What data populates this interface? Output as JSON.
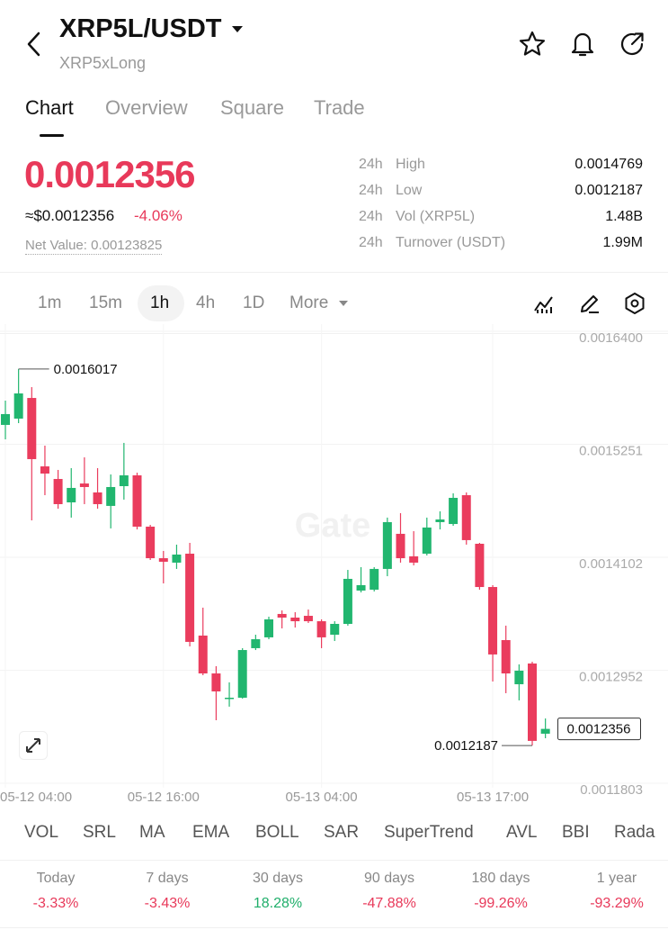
{
  "header": {
    "title": "XRP5L/USDT",
    "subtitle": "XRP5xLong"
  },
  "tabs": [
    "Chart",
    "Overview",
    "Square",
    "Trade"
  ],
  "price": {
    "last": "0.0012356",
    "usd": "≈$0.0012356",
    "change": "-4.06%",
    "net_value": "Net Value: 0.00123825"
  },
  "stats": [
    [
      "24h",
      "High",
      "0.0014769"
    ],
    [
      "24h",
      "Low",
      "0.0012187"
    ],
    [
      "24h",
      "Vol (XRP5L)",
      "1.48B"
    ],
    [
      "24h",
      "Turnover (USDT)",
      "1.99M"
    ]
  ],
  "intervals": [
    "1m",
    "15m",
    "1h",
    "4h",
    "1D",
    "More"
  ],
  "chart_data": {
    "type": "candlestick",
    "watermark": "Gate",
    "categories": [
      "05-12 04:00",
      null,
      null,
      null,
      null,
      null,
      null,
      null,
      null,
      null,
      null,
      null,
      "05-12 16:00",
      null,
      null,
      null,
      null,
      null,
      null,
      null,
      null,
      null,
      null,
      null,
      "05-13 04:00",
      null,
      null,
      null,
      null,
      null,
      null,
      null,
      null,
      null,
      null,
      null,
      null,
      "05-13 17:00",
      null,
      null,
      null,
      null
    ],
    "open": [
      0.0015448,
      0.0015512,
      0.0015722,
      0.0015026,
      0.0014898,
      0.001466,
      0.0014852,
      0.0014761,
      0.0014624,
      0.0014825,
      0.0014935,
      0.0014413,
      0.0014092,
      0.0014047,
      0.0014138,
      0.0013305,
      0.001292,
      0.0012664,
      0.0012673,
      0.0013177,
      0.0013287,
      0.0013525,
      0.0013488,
      0.0013506,
      0.0013451,
      0.0013314,
      0.0013424,
      0.0013763,
      0.0013772,
      0.0013983,
      0.001434,
      0.0014111,
      0.0014138,
      0.0014459,
      0.001444,
      0.0014733,
      0.0014239,
      0.0013799,
      0.0013259,
      0.001281,
      0.0013021,
      0.0012307
    ],
    "high": [
      0.0015695,
      0.0016017,
      0.0015832,
      0.0015237,
      0.001499,
      0.0015008,
      0.0015118,
      0.0015008,
      0.0014944,
      0.0015265,
      0.0014962,
      0.0014431,
      0.0014166,
      0.001423,
      0.0014248,
      0.0013589,
      0.0012994,
      0.0012829,
      0.0013177,
      0.0013314,
      0.0013497,
      0.0013561,
      0.0013543,
      0.001357,
      0.001347,
      0.0013451,
      0.0013973,
      0.0014001,
      0.0014001,
      0.0014505,
      0.001455,
      0.0014367,
      0.0014505,
      0.0014569,
      0.0014752,
      0.0014761,
      0.0014248,
      0.0013818,
      0.0013406,
      0.0013012,
      0.0013039,
      0.0012462
    ],
    "low": [
      0.0015301,
      0.0015466,
      0.0014477,
      0.0014733,
      0.0014596,
      0.0014505,
      0.0014642,
      0.0014596,
      0.0014395,
      0.0014688,
      0.0014385,
      0.0014074,
      0.0013836,
      0.0013983,
      0.0013195,
      0.0012902,
      0.0012444,
      0.0012582,
      0.0012664,
      0.0013158,
      0.0013268,
      0.0013378,
      0.0013387,
      0.0013433,
      0.0013177,
      0.001325,
      0.0013406,
      0.0013744,
      0.0013754,
      0.0013909,
      0.0014047,
      0.0014019,
      0.001412,
      0.0014385,
      0.0014422,
      0.001423,
      0.0013772,
      0.0012838,
      0.0012719,
      0.0012646,
      0.0012187,
      0.0012261
    ],
    "close": [
      0.0015558,
      0.0015768,
      0.00151,
      0.0014953,
      0.0014642,
      0.0014807,
      0.0014816,
      0.0014642,
      0.0014816,
      0.0014935,
      0.0014413,
      0.0014092,
      0.0014056,
      0.0014129,
      0.0013241,
      0.001292,
      0.0012737,
      0.0012673,
      0.0013158,
      0.0013268,
      0.001347,
      0.0013488,
      0.0013451,
      0.0013451,
      0.0013287,
      0.0013424,
      0.0013882,
      0.0013818,
      0.0013983,
      0.0014459,
      0.0014092,
      0.0014047,
      0.0014404,
      0.0014486,
      0.0014706,
      0.0014276,
      0.0013799,
      0.0013113,
      0.001292,
      0.0012948,
      0.0012234,
      0.0012356
    ],
    "up_color": "#21b66f",
    "down_color": "#ea3c5d",
    "ylim": [
      0.0011803,
      0.00164
    ],
    "yticks": [
      {
        "value": 0.00164,
        "label": "0.0016400"
      },
      0.0015251,
      0.0014102,
      0.0012952,
      0.0011803
    ],
    "grid": true
  },
  "indicators": [
    "VOL",
    "SRL",
    "MA",
    "EMA",
    "BOLL",
    "SAR",
    "SuperTrend",
    "AVL",
    "BBI",
    "Rada"
  ],
  "performance": [
    {
      "period": "Today",
      "change": "-3.33%"
    },
    {
      "period": "7 days",
      "change": "-3.43%"
    },
    {
      "period": "30 days",
      "change": "18.28%"
    },
    {
      "period": "90 days",
      "change": "-47.88%"
    },
    {
      "period": "180 days",
      "change": "-99.26%"
    },
    {
      "period": "1 year",
      "change": "-93.29%"
    }
  ]
}
